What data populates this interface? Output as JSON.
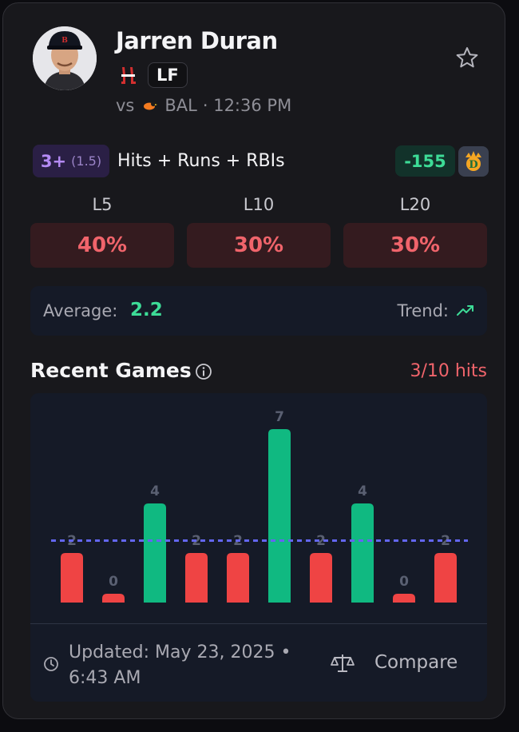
{
  "player": {
    "name": "Jarren Duran",
    "position": "LF",
    "matchup_prefix": "vs",
    "opponent": "BAL",
    "time": "· 12:36 PM"
  },
  "prop": {
    "line_main": "3+",
    "line_sub": "(1.5)",
    "label": "Hits + Runs + RBIs",
    "odds": "-155"
  },
  "splits": [
    {
      "label": "L5",
      "value": "40%"
    },
    {
      "label": "L10",
      "value": "30%"
    },
    {
      "label": "L20",
      "value": "30%"
    }
  ],
  "summary": {
    "average_label": "Average:",
    "average_value": "2.2",
    "trend_label": "Trend:"
  },
  "recent": {
    "title": "Recent Games",
    "hit_rate": "3/10 hits"
  },
  "chart_data": {
    "type": "bar",
    "categories": [
      "",
      "",
      "",
      "",
      "",
      "",
      "",
      "",
      "",
      ""
    ],
    "values": [
      2,
      0,
      4,
      2,
      2,
      7,
      2,
      4,
      0,
      2
    ],
    "threshold": 2.5,
    "ylim": [
      0,
      8
    ],
    "colors": {
      "hit": "#10b981",
      "miss": "#ef4444",
      "line": "#6366f1"
    }
  },
  "footer": {
    "updated": "Updated: May 23, 2025 • 6:43 AM",
    "compare_label": "Compare"
  },
  "icons": {
    "favorite": "star-icon",
    "info": "info-icon",
    "trend": "trend-up-icon",
    "clock": "clock-icon",
    "compare": "scale-icon"
  }
}
